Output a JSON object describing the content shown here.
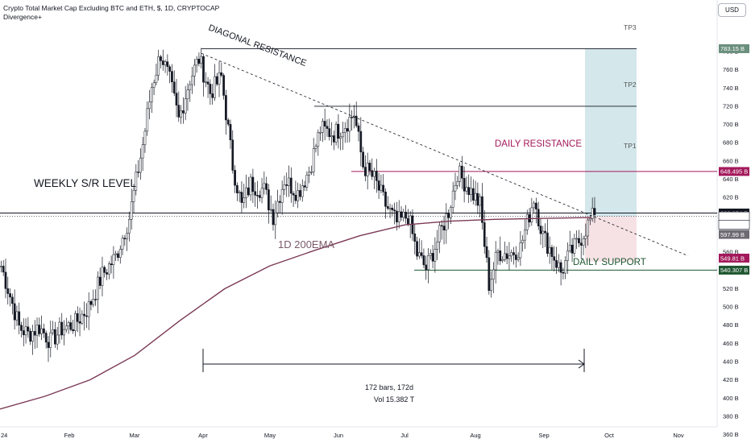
{
  "header": {
    "title": "Crypto Total Market Cap Excluding BTC and ETH, $, 1D, CRYPTOCAP",
    "indicator": "Divergence+",
    "currency": "USD"
  },
  "chart_data": {
    "type": "candlestick",
    "title": "Crypto Total Market Cap Excluding BTC and ETH, $, 1D, CRYPTOCAP",
    "y_unit": "B",
    "ylim": [
      355,
      805
    ],
    "y_ticks": [
      "780 B",
      "760 B",
      "740 B",
      "720 B",
      "700 B",
      "680 B",
      "660 B",
      "640 B",
      "620 B",
      "600 B",
      "580 B",
      "560 B",
      "540 B",
      "520 B",
      "500 B",
      "480 B",
      "460 B",
      "440 B",
      "420 B",
      "400 B",
      "380 B",
      "360 B"
    ],
    "x_ticks": [
      "24",
      "Feb",
      "Mar",
      "Apr",
      "May",
      "Jun",
      "Jul",
      "Aug",
      "Sep",
      "Oct",
      "Nov"
    ],
    "candles_ohlc_anchors": [
      [
        "Jan 1",
        545
      ],
      [
        "Jan 5",
        512
      ],
      [
        "Jan 9",
        478
      ],
      [
        "Jan 13",
        470
      ],
      [
        "Jan 18",
        478
      ],
      [
        "Jan 23",
        462
      ],
      [
        "Jan 28",
        476
      ],
      [
        "Feb 3",
        482
      ],
      [
        "Feb 9",
        500
      ],
      [
        "Feb 15",
        535
      ],
      [
        "Feb 21",
        555
      ],
      [
        "Feb 27",
        598
      ],
      [
        "Mar 4",
        678
      ],
      [
        "Mar 8",
        742
      ],
      [
        "Mar 12",
        778
      ],
      [
        "Mar 16",
        748
      ],
      [
        "Mar 20",
        705
      ],
      [
        "Mar 25",
        750
      ],
      [
        "Mar 29",
        772
      ],
      [
        "Apr 3",
        735
      ],
      [
        "Apr 8",
        752
      ],
      [
        "Apr 13",
        655
      ],
      [
        "Apr 17",
        610
      ],
      [
        "Apr 21",
        635
      ],
      [
        "Apr 27",
        628
      ],
      [
        "May 1",
        600
      ],
      [
        "May 6",
        640
      ],
      [
        "May 12",
        625
      ],
      [
        "May 17",
        650
      ],
      [
        "May 22",
        695
      ],
      [
        "May 28",
        690
      ],
      [
        "Jun 2",
        700
      ],
      [
        "Jun 6",
        712
      ],
      [
        "Jun 10",
        655
      ],
      [
        "Jun 15",
        640
      ],
      [
        "Jun 20",
        612
      ],
      [
        "Jun 25",
        592
      ],
      [
        "Jun 30",
        600
      ],
      [
        "Jul 4",
        558
      ],
      [
        "Jul 8",
        542
      ],
      [
        "Jul 13",
        572
      ],
      [
        "Jul 18",
        605
      ],
      [
        "Jul 22",
        648
      ],
      [
        "Jul 27",
        630
      ],
      [
        "Aug 1",
        612
      ],
      [
        "Aug 5",
        525
      ],
      [
        "Aug 9",
        560
      ],
      [
        "Aug 14",
        558
      ],
      [
        "Aug 19",
        565
      ],
      [
        "Aug 25",
        620
      ],
      [
        "Aug 29",
        578
      ],
      [
        "Sep 2",
        560
      ],
      [
        "Sep 6",
        538
      ],
      [
        "Sep 10",
        558
      ],
      [
        "Sep 14",
        572
      ],
      [
        "Sep 19",
        595
      ],
      [
        "Sep 21",
        601
      ]
    ],
    "series": [
      {
        "name": "1D 200EMA",
        "values": [
          388,
          402,
          420,
          447,
          485,
          520,
          545,
          562,
          578,
          590,
          594,
          596,
          597,
          598
        ]
      }
    ],
    "last_values": {
      "close": "599.255 B",
      "countdown": "11:30:08",
      "tp3": "783.15 B",
      "daily_resistance": "648.495 B",
      "weekly_sr": "602.954 B",
      "ema": "597.99 B",
      "entry": "549.81 B",
      "daily_support": "540.307 B"
    },
    "levels": {
      "TP3": 783.15,
      "TP2": 720,
      "TP1": 648.495,
      "daily_resistance": 648.495,
      "weekly_sr": 602.954,
      "daily_support": 540.307
    },
    "annotations": {
      "diagonal_resistance": "DIAGONAL RESISTANCE",
      "weekly_sr": "WEEKLY S/R LEVEL",
      "daily_resistance": "DAILY RESISTANCE",
      "daily_support": "DAILY SUPPORT",
      "ema_label": "1D 200EMA",
      "tp1": "TP1",
      "tp2": "TP2",
      "tp3": "TP3",
      "range_bars": "172 bars, 172d",
      "range_vol": "Vol 15.382 T"
    },
    "colors": {
      "up": "#131722",
      "down": "#131722",
      "ema": "#7b3955",
      "resistance": "#a3195b",
      "support": "#1e5631",
      "target_zone": "#cde3e7",
      "stop_zone": "#f4dde1"
    }
  }
}
